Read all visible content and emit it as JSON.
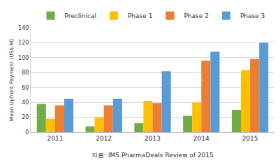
{
  "chart_data": {
    "type": "bar",
    "y_label": "Mean Upfront Payment (US$ M)",
    "source": "자료: IMS PharmaDeals Review of 2015",
    "categories": [
      "2011",
      "2012",
      "2013",
      "2014",
      "2015"
    ],
    "series": [
      {
        "name": "Preclinical",
        "color": "#70ad47",
        "values": [
          38,
          8,
          12,
          22,
          30
        ]
      },
      {
        "name": "Phase 1",
        "color": "#ffc000",
        "values": [
          18,
          20,
          42,
          40,
          83
        ]
      },
      {
        "name": "Phase 2",
        "color": "#ed7d31",
        "values": [
          36,
          36,
          39,
          96,
          98
        ]
      },
      {
        "name": "Phase 3",
        "color": "#5b9bd5",
        "values": [
          45,
          45,
          82,
          108,
          120
        ]
      }
    ],
    "ylim": [
      0,
      140
    ],
    "yticks": [
      0,
      20,
      40,
      60,
      80,
      100,
      120,
      140
    ],
    "grid": true,
    "legend": "top"
  }
}
